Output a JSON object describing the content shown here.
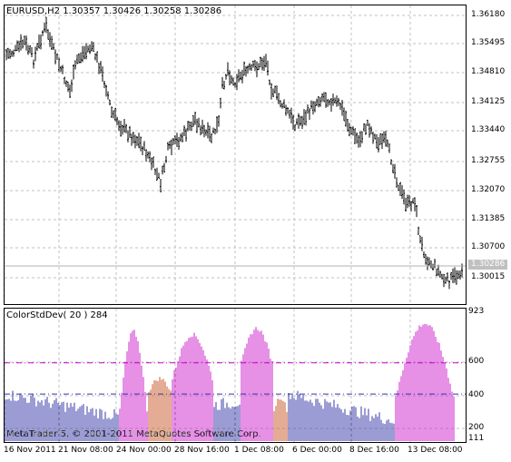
{
  "chart": {
    "symbol_info": "EURUSD,H2  1.30357 1.30426 1.30258 1.30286",
    "current_price": "1.30286",
    "price_ticks": [
      "1.36180",
      "1.35495",
      "1.34810",
      "1.34125",
      "1.33440",
      "1.32755",
      "1.32070",
      "1.31385",
      "1.30700",
      "1.30015"
    ],
    "time_ticks": [
      "16 Nov 2011",
      "21 Nov 08:00",
      "24 Nov 00:00",
      "28 Nov 16:00",
      "1 Dec 08:00",
      "6 Dec 00:00",
      "8 Dec 16:00",
      "13 Dec 08:00"
    ]
  },
  "indicator": {
    "title": "ColorStdDev( 20 ) 284",
    "scale_ticks": [
      "923",
      "600",
      "400",
      "200",
      "111"
    ],
    "levels": [
      600,
      400
    ],
    "copyright": "MetaTrader 5, © 2001-2011 MetaQuotes Software Corp."
  },
  "colors": {
    "price_bars": "#000000",
    "grid": "#c0c0c0",
    "level_high": "#cc00cc",
    "level_low": "#3333aa",
    "hist_blue": "#3a3aa8",
    "hist_orange": "#c85a28",
    "hist_magenta": "#cc22cc",
    "hist_gray": "#a0a0a0"
  },
  "chart_data": {
    "type": "bar",
    "title": "ColorStdDev( 20 ) 284",
    "ylim": [
      111,
      923
    ],
    "segments": [
      {
        "color": "blue",
        "start": 0,
        "end": 63,
        "from": 400,
        "to": 260
      },
      {
        "color": "magenta",
        "start": 63,
        "end": 79,
        "from": 300,
        "to": 800
      },
      {
        "color": "orange",
        "start": 79,
        "end": 92,
        "from": 420,
        "to": 500
      },
      {
        "color": "magenta",
        "start": 92,
        "end": 115,
        "from": 500,
        "to": 780
      },
      {
        "color": "blue",
        "start": 115,
        "end": 130,
        "from": 330,
        "to": 350
      },
      {
        "color": "magenta",
        "start": 130,
        "end": 148,
        "from": 600,
        "to": 820
      },
      {
        "color": "orange",
        "start": 148,
        "end": 156,
        "from": 300,
        "to": 380
      },
      {
        "color": "blue",
        "start": 156,
        "end": 215,
        "from": 400,
        "to": 230
      },
      {
        "color": "magenta",
        "start": 215,
        "end": 248,
        "from": 380,
        "to": 850
      }
    ]
  }
}
